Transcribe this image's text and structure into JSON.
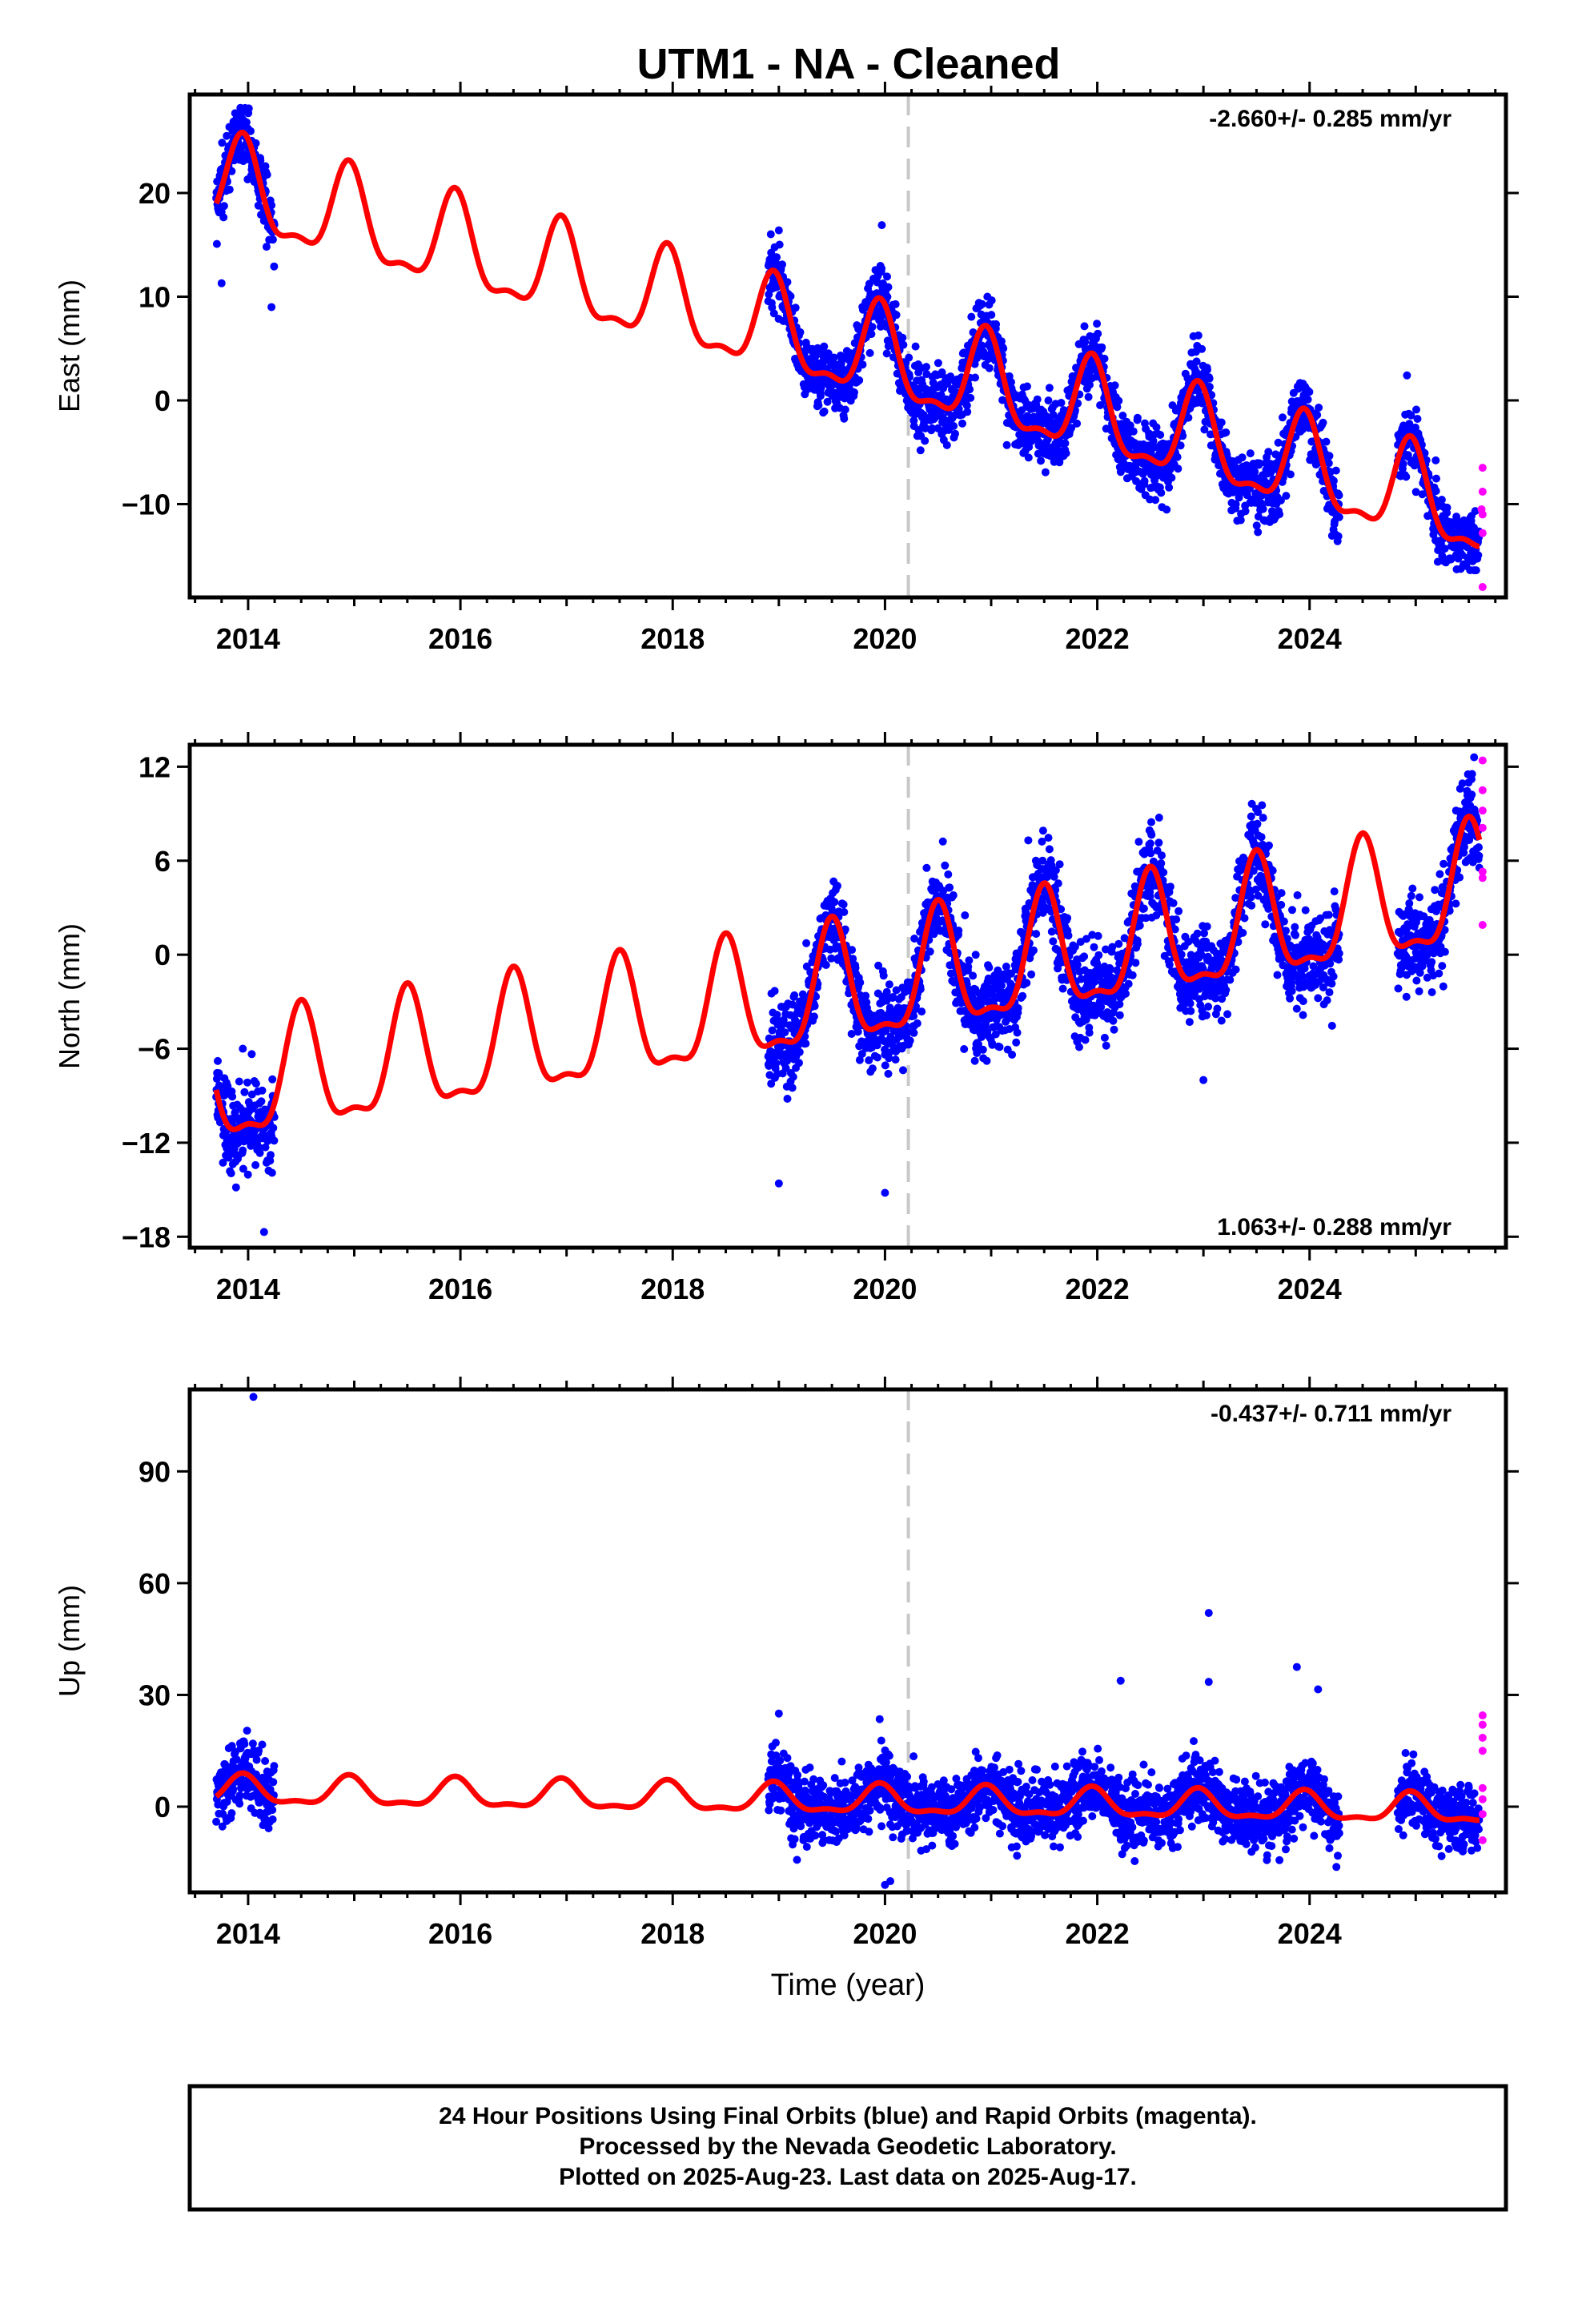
{
  "title": "UTM1  - NA - Cleaned",
  "colors": {
    "final": "#0000ff",
    "rapid": "#ff00ff",
    "model": "#ff0000",
    "event": "#c8c8c8"
  },
  "chart_data": [
    {
      "type": "scatter",
      "ylabel": "East (mm)",
      "rate": "-2.660+/- 0.285 mm/yr",
      "rate_placement": "top-right",
      "xlim": [
        2013.45,
        2025.85
      ],
      "ylim": [
        -19,
        29.5
      ],
      "xticks": [
        2014,
        2016,
        2018,
        2020,
        2022,
        2024
      ],
      "yticks": [
        -10,
        0,
        10,
        20
      ],
      "event_line": 2020.22,
      "model": {
        "offset": 19.8,
        "slope": -2.66,
        "t0": 2014.0,
        "annual_amp": 4.3,
        "annual_peak": 2014.95,
        "semi_amp": 1.6,
        "semi_peak": 2014.95
      },
      "data_spans": [
        [
          2013.7,
          2014.25
        ],
        [
          2018.9,
          2024.28
        ],
        [
          2024.83,
          2025.6
        ]
      ],
      "scatter_sd": 1.6,
      "outliers": [
        [
          2013.75,
          11.3
        ],
        [
          2014.22,
          9.0
        ],
        [
          2019.97,
          16.9
        ],
        [
          2019.0,
          16.4
        ],
        [
          2025.45,
          -15.8
        ],
        [
          2025.4,
          -14.5
        ]
      ],
      "rapid": [
        [
          2025.63,
          -6.5
        ],
        [
          2025.63,
          -8.8
        ],
        [
          2025.63,
          -11.0
        ],
        [
          2025.63,
          -12.8
        ],
        [
          2025.63,
          -18.0
        ],
        [
          2025.62,
          -10.5
        ]
      ]
    },
    {
      "type": "scatter",
      "ylabel": "North (mm)",
      "rate": "1.063+/- 0.288 mm/yr",
      "rate_placement": "bottom-right",
      "xlim": [
        2013.45,
        2025.85
      ],
      "ylim": [
        -18.7,
        13.4
      ],
      "xticks": [
        2014,
        2016,
        2018,
        2020,
        2022,
        2024
      ],
      "yticks": [
        -18,
        -12,
        -6,
        0,
        6,
        12
      ],
      "event_line": 2020.22,
      "model": {
        "offset": -8.4,
        "slope": 1.063,
        "t0": 2014.0,
        "annual_amp": 3.7,
        "annual_peak": 2014.5,
        "semi_amp": 1.3,
        "semi_peak": 2014.5
      },
      "data_spans": [
        [
          2013.7,
          2014.25
        ],
        [
          2018.9,
          2024.28
        ],
        [
          2024.83,
          2025.6
        ]
      ],
      "scatter_sd": 1.4,
      "outliers": [
        [
          2013.95,
          -6.0
        ],
        [
          2014.15,
          -17.7
        ],
        [
          2019.0,
          -14.6
        ],
        [
          2020.0,
          -15.2
        ],
        [
          2021.35,
          7.3
        ],
        [
          2023.0,
          -8.0
        ],
        [
          2025.55,
          12.6
        ]
      ],
      "rapid": [
        [
          2025.63,
          12.4
        ],
        [
          2025.63,
          10.5
        ],
        [
          2025.63,
          9.2
        ],
        [
          2025.63,
          8.1
        ],
        [
          2025.63,
          5.3
        ],
        [
          2025.63,
          4.9
        ],
        [
          2025.63,
          1.9
        ]
      ]
    },
    {
      "type": "scatter",
      "ylabel": "Up (mm)",
      "xlabel": "Time (year)",
      "rate": "-0.437+/- 0.711 mm/yr",
      "rate_placement": "top-right",
      "xlim": [
        2013.45,
        2025.85
      ],
      "ylim": [
        -23,
        112
      ],
      "xticks": [
        2014,
        2016,
        2018,
        2020,
        2022,
        2024
      ],
      "yticks": [
        0,
        30,
        60,
        90
      ],
      "event_line": 2020.22,
      "model": {
        "offset": 4.0,
        "slope": -0.437,
        "t0": 2014.0,
        "annual_amp": 3.6,
        "annual_peak": 2014.95,
        "semi_amp": 1.4,
        "semi_peak": 2014.95
      },
      "data_spans": [
        [
          2013.7,
          2014.25
        ],
        [
          2018.9,
          2024.28
        ],
        [
          2024.83,
          2025.6
        ]
      ],
      "scatter_sd": 4.5,
      "outliers": [
        [
          2014.05,
          110.0
        ],
        [
          2023.05,
          52.0
        ],
        [
          2023.05,
          33.5
        ],
        [
          2022.22,
          33.8
        ],
        [
          2023.88,
          37.5
        ],
        [
          2024.08,
          31.5
        ],
        [
          2019.0,
          25.0
        ],
        [
          2020.05,
          -20.0
        ],
        [
          2019.95,
          23.5
        ],
        [
          2020.0,
          -21.0
        ]
      ],
      "rapid": [
        [
          2025.63,
          24.5
        ],
        [
          2025.63,
          22.0
        ],
        [
          2025.63,
          18.5
        ],
        [
          2025.63,
          15.0
        ],
        [
          2025.63,
          5.0
        ],
        [
          2025.63,
          2.0
        ],
        [
          2025.63,
          -2.0
        ],
        [
          2025.63,
          -9.0
        ]
      ]
    }
  ],
  "footer": {
    "line1": "24 Hour Positions Using Final Orbits (blue) and Rapid Orbits (magenta).",
    "line2": "Processed by the Nevada Geodetic Laboratory.",
    "line3": "Plotted on 2025-Aug-23. Last data on 2025-Aug-17."
  }
}
